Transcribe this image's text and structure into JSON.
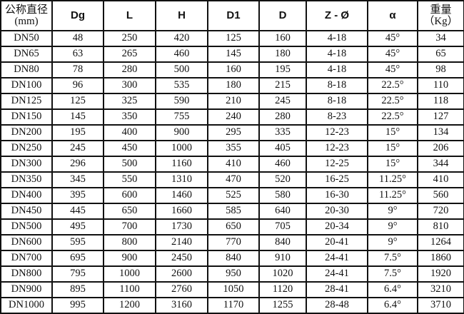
{
  "headers": [
    {
      "line1": "公称直径",
      "line2": "(mm)"
    },
    {
      "line1": "Dg"
    },
    {
      "line1": "L"
    },
    {
      "line1": "H"
    },
    {
      "line1": "D1"
    },
    {
      "line1": "D"
    },
    {
      "line1": "Z - Ø"
    },
    {
      "line1": "α"
    },
    {
      "line1": "重量",
      "line2": "（Kg）"
    }
  ],
  "rows": [
    [
      "DN50",
      "48",
      "250",
      "420",
      "125",
      "160",
      "4-18",
      "45°",
      "34"
    ],
    [
      "DN65",
      "63",
      "265",
      "460",
      "145",
      "180",
      "4-18",
      "45°",
      "65"
    ],
    [
      "DN80",
      "78",
      "280",
      "500",
      "160",
      "195",
      "4-18",
      "45°",
      "98"
    ],
    [
      "DN100",
      "96",
      "300",
      "535",
      "180",
      "215",
      "8-18",
      "22.5°",
      "110"
    ],
    [
      "DN125",
      "125",
      "325",
      "590",
      "210",
      "245",
      "8-18",
      "22.5°",
      "118"
    ],
    [
      "DN150",
      "145",
      "350",
      "755",
      "240",
      "280",
      "8-23",
      "22.5°",
      "127"
    ],
    [
      "DN200",
      "195",
      "400",
      "900",
      "295",
      "335",
      "12-23",
      "15°",
      "134"
    ],
    [
      "DN250",
      "245",
      "450",
      "1000",
      "355",
      "405",
      "12-23",
      "15°",
      "206"
    ],
    [
      "DN300",
      "296",
      "500",
      "1160",
      "410",
      "460",
      "12-25",
      "15°",
      "344"
    ],
    [
      "DN350",
      "345",
      "550",
      "1310",
      "470",
      "520",
      "16-25",
      "11.25°",
      "410"
    ],
    [
      "DN400",
      "395",
      "600",
      "1460",
      "525",
      "580",
      "16-30",
      "11.25°",
      "560"
    ],
    [
      "DN450",
      "445",
      "650",
      "1660",
      "585",
      "640",
      "20-30",
      "9°",
      "720"
    ],
    [
      "DN500",
      "495",
      "700",
      "1730",
      "650",
      "705",
      "20-34",
      "9°",
      "810"
    ],
    [
      "DN600",
      "595",
      "800",
      "2140",
      "770",
      "840",
      "20-41",
      "9°",
      "1264"
    ],
    [
      "DN700",
      "695",
      "900",
      "2450",
      "840",
      "910",
      "24-41",
      "7.5°",
      "1860"
    ],
    [
      "DN800",
      "795",
      "1000",
      "2600",
      "950",
      "1020",
      "24-41",
      "7.5°",
      "1920"
    ],
    [
      "DN900",
      "895",
      "1100",
      "2760",
      "1050",
      "1120",
      "28-41",
      "6.4°",
      "3210"
    ],
    [
      "DN1000",
      "995",
      "1200",
      "3160",
      "1170",
      "1255",
      "28-48",
      "6.4°",
      "3710"
    ]
  ]
}
